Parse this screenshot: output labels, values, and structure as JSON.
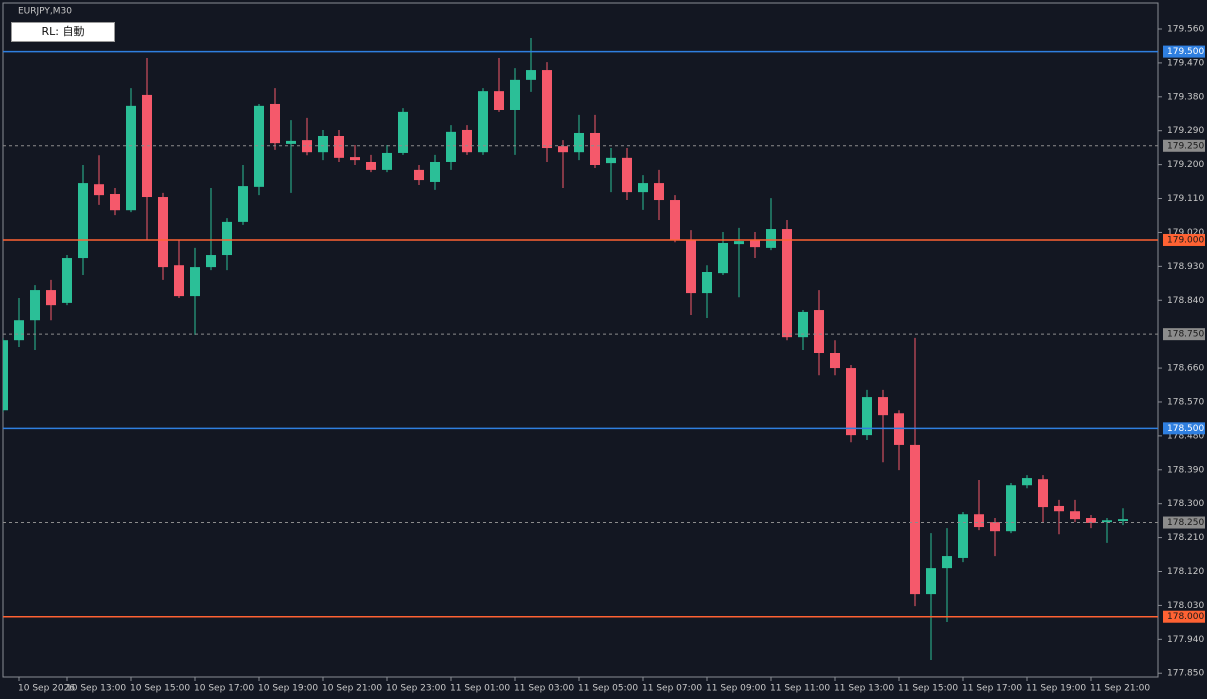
{
  "header": {
    "symbol": "EURJPY,M30",
    "button": "RL: 自動"
  },
  "chart_data": {
    "type": "candlestick",
    "categories": [
      null,
      "10 Sep 2026",
      null,
      null,
      "10 Sep 13:00",
      null,
      null,
      null,
      "10 Sep 15:00",
      null,
      null,
      null,
      "10 Sep 17:00",
      null,
      null,
      null,
      "10 Sep 19:00",
      null,
      null,
      null,
      "10 Sep 21:00",
      null,
      null,
      null,
      "10 Sep 23:00",
      null,
      null,
      null,
      "11 Sep 01:00",
      null,
      null,
      null,
      "11 Sep 03:00",
      null,
      null,
      null,
      "11 Sep 05:00",
      null,
      null,
      null,
      "11 Sep 07:00",
      null,
      null,
      null,
      "11 Sep 09:00",
      null,
      null,
      null,
      "11 Sep 11:00",
      null,
      null,
      null,
      "11 Sep 13:00",
      null,
      null,
      null,
      "11 Sep 15:00",
      null,
      null,
      null,
      "11 Sep 17:00",
      null,
      null,
      null,
      "11 Sep 19:00",
      null,
      null,
      null,
      "11 Sep 21:00",
      null,
      null
    ],
    "open": [
      178.548,
      178.734,
      178.787,
      178.867,
      178.833,
      178.952,
      179.148,
      179.122,
      179.079,
      179.385,
      179.114,
      178.933,
      178.851,
      178.928,
      178.96,
      179.048,
      179.141,
      179.361,
      179.255,
      179.265,
      179.233,
      179.276,
      179.22,
      179.207,
      179.186,
      179.231,
      179.186,
      179.154,
      179.207,
      179.292,
      179.233,
      179.395,
      179.345,
      179.425,
      179.451,
      179.249,
      179.233,
      179.284,
      179.204,
      179.218,
      179.127,
      179.151,
      179.106,
      179.0,
      178.859,
      178.912,
      178.989,
      179.0,
      178.979,
      179.029,
      178.742,
      178.814,
      178.7,
      178.66,
      178.482,
      178.583,
      178.54,
      178.456,
      178.06,
      178.129,
      178.156,
      178.272,
      178.251,
      178.227,
      178.349,
      178.365,
      178.294,
      178.28,
      178.262,
      178.251,
      178.254
    ],
    "high": [
      178.739,
      178.846,
      178.88,
      178.894,
      178.96,
      179.199,
      179.225,
      179.138,
      179.403,
      179.483,
      179.125,
      179.0,
      178.979,
      179.138,
      179.058,
      179.199,
      179.361,
      179.403,
      179.318,
      179.324,
      179.292,
      179.292,
      179.252,
      179.226,
      179.252,
      179.35,
      179.199,
      179.226,
      179.305,
      179.305,
      179.403,
      179.483,
      179.456,
      179.536,
      179.472,
      179.265,
      179.332,
      179.332,
      179.244,
      179.244,
      179.172,
      179.186,
      179.119,
      179.026,
      178.933,
      179.021,
      179.032,
      179.021,
      179.111,
      179.053,
      178.814,
      178.867,
      178.734,
      178.668,
      178.602,
      178.602,
      178.548,
      178.74,
      178.222,
      178.235,
      178.278,
      178.363,
      178.262,
      178.355,
      178.376,
      178.376,
      178.31,
      178.31,
      178.27,
      178.262,
      178.288
    ],
    "low": [
      178.543,
      178.716,
      178.708,
      178.787,
      178.827,
      178.907,
      179.093,
      179.066,
      179.074,
      179.0,
      178.894,
      178.846,
      178.748,
      178.92,
      178.92,
      179.04,
      179.119,
      179.239,
      179.125,
      179.225,
      179.212,
      179.207,
      179.199,
      179.18,
      179.18,
      179.226,
      179.146,
      179.133,
      179.186,
      179.226,
      179.226,
      179.34,
      179.226,
      179.393,
      179.207,
      179.138,
      179.212,
      179.191,
      179.127,
      179.106,
      179.08,
      179.053,
      178.994,
      178.801,
      178.793,
      178.907,
      178.848,
      178.952,
      178.973,
      178.734,
      178.708,
      178.641,
      178.641,
      178.463,
      178.469,
      178.41,
      178.389,
      178.028,
      177.885,
      177.986,
      178.145,
      178.23,
      178.161,
      178.222,
      178.341,
      178.251,
      178.219,
      178.251,
      178.235,
      178.196,
      178.243
    ],
    "close": [
      178.734,
      178.787,
      178.867,
      178.827,
      178.952,
      179.151,
      179.119,
      179.079,
      179.356,
      179.114,
      178.928,
      178.851,
      178.928,
      178.96,
      179.048,
      179.143,
      179.356,
      179.257,
      179.263,
      179.233,
      179.276,
      179.218,
      179.212,
      179.186,
      179.231,
      179.34,
      179.159,
      179.207,
      179.287,
      179.233,
      179.395,
      179.345,
      179.425,
      179.451,
      179.244,
      179.233,
      179.284,
      179.199,
      179.218,
      179.127,
      179.151,
      179.106,
      179.0,
      178.859,
      178.915,
      178.992,
      178.997,
      178.981,
      179.029,
      178.742,
      178.809,
      178.7,
      178.66,
      178.482,
      178.583,
      178.535,
      178.456,
      178.06,
      178.129,
      178.161,
      178.272,
      178.238,
      178.227,
      178.349,
      178.368,
      178.291,
      178.28,
      178.259,
      178.249,
      178.256,
      178.259
    ],
    "up_color": "#2bbf97",
    "down_color": "#f5596b",
    "ylim": [
      177.84,
      179.629
    ],
    "yticks": [
      {
        "value": 179.56,
        "label": "179.560"
      },
      {
        "value": 179.47,
        "label": "179.470"
      },
      {
        "value": 179.38,
        "label": "179.380"
      },
      {
        "value": 179.29,
        "label": "179.290"
      },
      {
        "value": 179.2,
        "label": "179.200"
      },
      {
        "value": 179.11,
        "label": "179.110"
      },
      {
        "value": 179.02,
        "label": "179.020"
      },
      {
        "value": 178.93,
        "label": "178.930"
      },
      {
        "value": 178.84,
        "label": "178.840"
      },
      {
        "value": 178.66,
        "label": "178.660"
      },
      {
        "value": 178.57,
        "label": "178.570"
      },
      {
        "value": 178.48,
        "label": "178.480"
      },
      {
        "value": 178.39,
        "label": "178.390"
      },
      {
        "value": 178.3,
        "label": "178.300"
      },
      {
        "value": 178.21,
        "label": "178.210"
      },
      {
        "value": 178.12,
        "label": "178.120"
      },
      {
        "value": 178.03,
        "label": "178.030"
      },
      {
        "value": 177.94,
        "label": "177.940"
      },
      {
        "value": 177.85,
        "label": "177.850"
      }
    ],
    "levels": [
      {
        "value": 179.5,
        "label": "179.500",
        "color": "#2f7fe0",
        "style": "solid"
      },
      {
        "value": 179.25,
        "label": "179.250",
        "color": "#8c8c8c",
        "style": "dashed"
      },
      {
        "value": 179.0,
        "label": "179.000",
        "color": "#ff6233",
        "style": "solid"
      },
      {
        "value": 178.75,
        "label": "178.750",
        "color": "#8c8c8c",
        "style": "dashed"
      },
      {
        "value": 178.5,
        "label": "178.500",
        "color": "#2f7fe0",
        "style": "solid"
      },
      {
        "value": 178.25,
        "label": "178.250",
        "color": "#8c8c8c",
        "style": "dashed"
      },
      {
        "value": 178.0,
        "label": "178.000",
        "color": "#ff6233",
        "style": "solid"
      }
    ]
  }
}
